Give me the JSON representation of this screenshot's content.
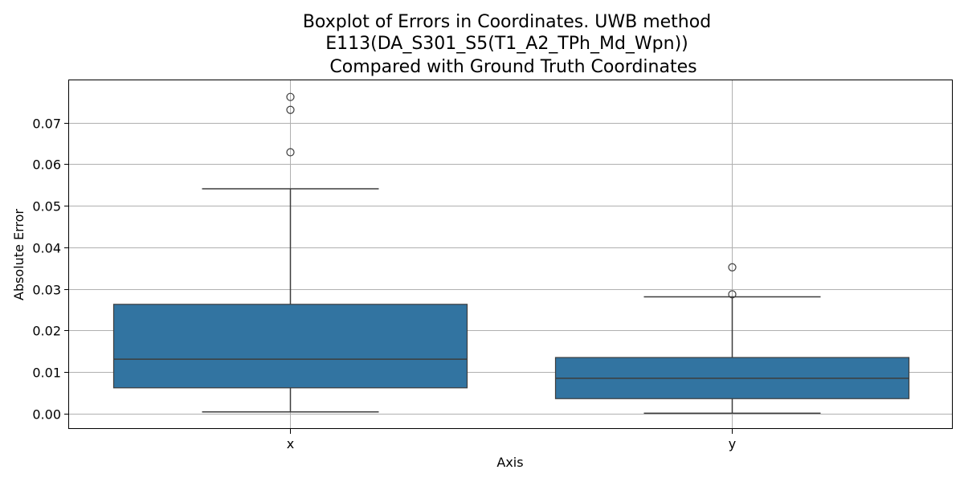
{
  "chart_data": {
    "type": "box",
    "title_lines": [
      "Boxplot of Errors in Coordinates. UWB method",
      "E113(DA_S301_S5(T1_A2_TPh_Md_Wpn))",
      "Compared with Ground Truth Coordinates"
    ],
    "xlabel": "Axis",
    "ylabel": "Absolute Error",
    "categories": [
      "x",
      "y"
    ],
    "ylim": [
      -0.0037,
      0.0802
    ],
    "yticks": [
      0.0,
      0.01,
      0.02,
      0.03,
      0.04,
      0.05,
      0.06,
      0.07
    ],
    "ytick_labels": [
      "0.00",
      "0.01",
      "0.02",
      "0.03",
      "0.04",
      "0.05",
      "0.06",
      "0.07"
    ],
    "grid": true,
    "box_color": "#3274a1",
    "line_color": "#3d3d3d",
    "boxes": [
      {
        "category": "x",
        "whisker_low": 0.0004,
        "q1": 0.0062,
        "median": 0.0131,
        "q3": 0.0263,
        "whisker_high": 0.0541,
        "outliers": [
          0.0629,
          0.0731,
          0.0762
        ]
      },
      {
        "category": "y",
        "whisker_low": 0.0001,
        "q1": 0.0036,
        "median": 0.0085,
        "q3": 0.0135,
        "whisker_high": 0.0281,
        "outliers": [
          0.0287,
          0.0352
        ]
      }
    ]
  }
}
